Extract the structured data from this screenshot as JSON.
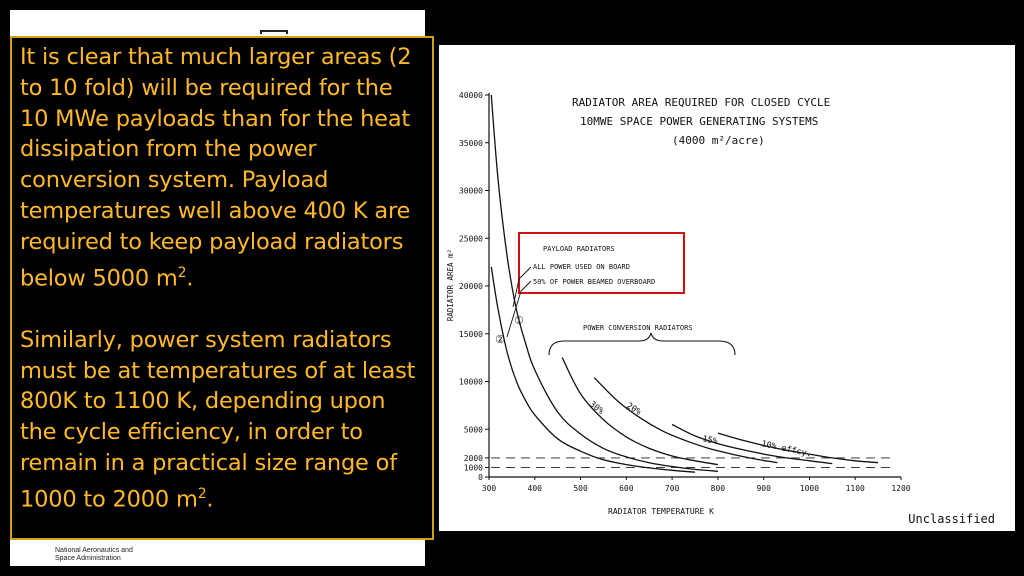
{
  "text_panel": {
    "paragraph1": "It is clear that much larger areas (2 to 10 fold) will be required for the 10 MWe payloads than for the heat dissipation from the power conversion system. Payload temperatures well above 400 K are required to keep payload radiators below 5000 m",
    "paragraph1_sup": "2",
    "paragraph1_end": ".",
    "paragraph2": "Similarly, power system radiators must be at temperatures of at least 800K to 1100 K, depending upon the cycle efficiency, in order to remain in a practical size range of 1000 to 2000 m",
    "paragraph2_sup": "2",
    "paragraph2_end": "."
  },
  "footer_logo": {
    "line1": "National Aeronautics and",
    "line2": "Space Administration"
  },
  "figure": {
    "classification": "Unclassified"
  },
  "chart_data": {
    "type": "line",
    "title_lines": [
      "RADIATOR AREA REQUIRED FOR CLOSED CYCLE",
      "10MWE SPACE POWER GENERATING SYSTEMS",
      "(4000 m²/acre)"
    ],
    "xlabel": "RADIATOR TEMPERATURE  K",
    "ylabel": "RADIATOR AREA m²",
    "xlim": [
      300,
      1200
    ],
    "ylim": [
      0,
      40000
    ],
    "x_ticks": [
      "300",
      "400",
      "500",
      "600",
      "700",
      "800",
      "900",
      "1000",
      "1100",
      "1200"
    ],
    "y_ticks": [
      {
        "value": 40000,
        "label": "40000"
      },
      {
        "value": 35000,
        "label": "35000"
      },
      {
        "value": 30000,
        "label": "30000"
      },
      {
        "value": 25000,
        "label": "25000"
      },
      {
        "value": 20000,
        "label": "20000"
      },
      {
        "value": 15000,
        "label": "15000"
      },
      {
        "value": 10000,
        "label": "10000"
      },
      {
        "value": 5000,
        "label": "5000"
      },
      {
        "value": 2000,
        "label": "2000"
      },
      {
        "value": 1000,
        "label": "1000"
      },
      {
        "value": 0,
        "label": "0"
      }
    ],
    "reference_lines": [
      2000,
      1000
    ],
    "legend": {
      "header": "PAYLOAD RADIATORS",
      "items": [
        "ALL POWER USED ON BOARD",
        "50% OF POWER BEAMED OVERBOARD"
      ]
    },
    "group_label": "POWER CONVERSION RADIATORS",
    "series": [
      {
        "name": "ALL POWER USED ON BOARD",
        "marker": "①",
        "x": [
          305,
          320,
          340,
          360,
          380,
          400,
          450,
          500,
          550,
          600,
          650,
          700,
          750,
          800
        ],
        "y": [
          40000,
          31000,
          23000,
          17500,
          14000,
          11200,
          6800,
          4500,
          3000,
          2100,
          1500,
          1100,
          800,
          600
        ]
      },
      {
        "name": "50% OF POWER BEAMED OVERBOARD",
        "marker": "②",
        "x": [
          305,
          320,
          340,
          360,
          380,
          400,
          450,
          500,
          550,
          600,
          650,
          700,
          750
        ],
        "y": [
          22000,
          17500,
          13000,
          10000,
          8000,
          6500,
          4000,
          2700,
          1800,
          1300,
          950,
          700,
          500
        ]
      },
      {
        "name": "30%",
        "x": [
          460,
          500,
          550,
          600,
          650,
          700,
          750,
          800
        ],
        "y": [
          12500,
          8700,
          6000,
          4200,
          3000,
          2200,
          1700,
          1300
        ]
      },
      {
        "name": "20%",
        "x": [
          530,
          580,
          630,
          680,
          730,
          780,
          830,
          880,
          930
        ],
        "y": [
          10400,
          8000,
          6200,
          4800,
          3800,
          3000,
          2400,
          1900,
          1500
        ]
      },
      {
        "name": "15%",
        "x": [
          700,
          750,
          800,
          850,
          900,
          950,
          1000,
          1050
        ],
        "y": [
          5500,
          4300,
          3500,
          2900,
          2400,
          2000,
          1700,
          1400
        ]
      },
      {
        "name": "10% effcy.",
        "x": [
          800,
          850,
          900,
          950,
          1000,
          1050,
          1100,
          1150
        ],
        "y": [
          4600,
          3900,
          3300,
          2800,
          2400,
          2000,
          1700,
          1500
        ]
      }
    ],
    "curve_labels": [
      "30%",
      "20%",
      "15%",
      "10% effcy."
    ]
  }
}
